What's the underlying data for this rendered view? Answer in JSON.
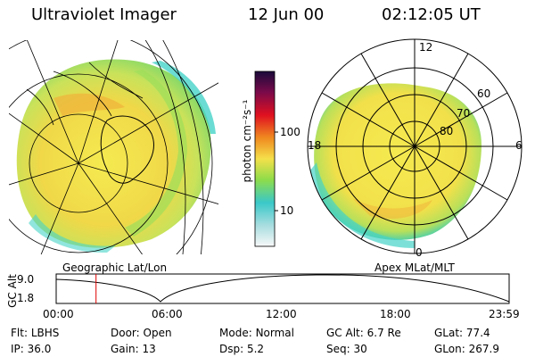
{
  "header": {
    "title": "Ultraviolet Imager",
    "date": "12 Jun 00",
    "time": "02:12:05 UT"
  },
  "colorbar": {
    "label": "photon cm⁻²s⁻¹",
    "ticks": [
      "100",
      "10"
    ]
  },
  "left_panel": {
    "caption": "Geographic Lat/Lon"
  },
  "right_panel": {
    "caption": "Apex MLat/MLT",
    "mlt_labels": {
      "top": "12",
      "left": "18",
      "right": "6",
      "bottom": "0"
    },
    "lat_labels": [
      "60",
      "70",
      "80"
    ]
  },
  "altitude_plot": {
    "ylabel": "GC Alt",
    "yticks": [
      "9.0",
      "1.8"
    ],
    "xticks": [
      "00:00",
      "06:00",
      "12:00",
      "18:00",
      "23:59"
    ],
    "marker_time_fraction": 0.088
  },
  "info": {
    "row1": [
      {
        "label": "Flt:",
        "value": "LBHS"
      },
      {
        "label": "Door:",
        "value": "Open"
      },
      {
        "label": "Mode:",
        "value": "Normal"
      },
      {
        "label": "GC Alt:",
        "value": "6.7 Re"
      },
      {
        "label": "GLat:",
        "value": "77.4"
      }
    ],
    "row2": [
      {
        "label": "IP:",
        "value": "36.0"
      },
      {
        "label": "Gain:",
        "value": "13"
      },
      {
        "label": "Dsp:",
        "value": "5.2"
      },
      {
        "label": "Seq:",
        "value": "30"
      },
      {
        "label": "GLon:",
        "value": "267.9"
      }
    ]
  },
  "colors": {
    "aurora_main": "#f2e84a",
    "aurora_orange": "#f0b23a",
    "aurora_green": "#9ede5a",
    "aurora_cyan": "#46d3c8",
    "marker": "#e00000"
  }
}
